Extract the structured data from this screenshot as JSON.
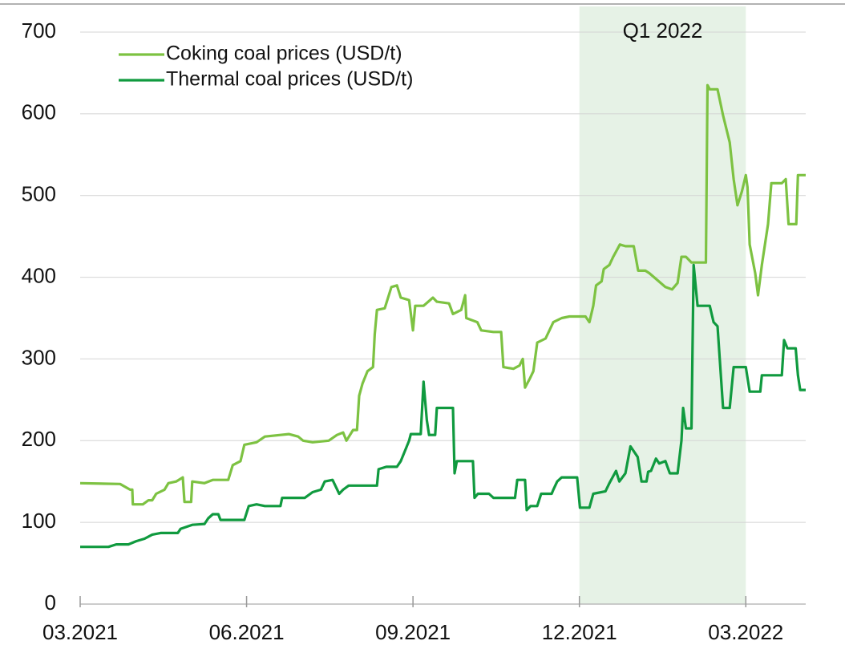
{
  "chart_data": {
    "type": "line",
    "highlight": {
      "label": "Q1 2022",
      "x": [
        9,
        12
      ],
      "color": "#e6f2e6"
    },
    "xlim": [
      0,
      13.08
    ],
    "xticks": [
      {
        "value": 0,
        "label": "03.2021"
      },
      {
        "value": 3,
        "label": "06.2021"
      },
      {
        "value": 6,
        "label": "09.2021"
      },
      {
        "value": 9,
        "label": "12.2021"
      },
      {
        "value": 12,
        "label": "03.2022"
      }
    ],
    "ylim": [
      0,
      700
    ],
    "yticks": [
      0,
      100,
      200,
      300,
      400,
      500,
      600,
      700
    ],
    "grid": true,
    "legend": "top-left",
    "series": [
      {
        "name": "Coking coal prices (USD/t)",
        "color": "#7dc242",
        "x": [
          0,
          0.72,
          0.9,
          0.94,
          0.95,
          1.13,
          1.23,
          1.3,
          1.37,
          1.52,
          1.59,
          1.73,
          1.85,
          1.88,
          2.0,
          2.02,
          2.24,
          2.39,
          2.67,
          2.75,
          2.89,
          2.96,
          3.18,
          3.33,
          3.61,
          3.76,
          3.93,
          4.02,
          4.19,
          4.48,
          4.63,
          4.74,
          4.8,
          4.92,
          4.99,
          5.03,
          5.09,
          5.18,
          5.28,
          5.31,
          5.35,
          5.49,
          5.61,
          5.71,
          5.78,
          5.93,
          6.0,
          6.04,
          6.19,
          6.36,
          6.43,
          6.65,
          6.72,
          6.87,
          6.94,
          6.96,
          7.16,
          7.23,
          7.45,
          7.59,
          7.63,
          7.81,
          7.92,
          7.98,
          8.02,
          8.1,
          8.17,
          8.24,
          8.39,
          8.53,
          8.68,
          8.82,
          9.11,
          9.18,
          9.25,
          9.3,
          9.4,
          9.44,
          9.54,
          9.61,
          9.73,
          9.83,
          9.98,
          10.06,
          10.19,
          10.26,
          10.38,
          10.55,
          10.67,
          10.77,
          10.84,
          10.92,
          11.02,
          11.28,
          11.31,
          11.35,
          11.49,
          11.59,
          11.71,
          11.78,
          11.85,
          11.93,
          12.0,
          12.03,
          12.07,
          12.17,
          12.22,
          12.29,
          12.4,
          12.46,
          12.65,
          12.72,
          12.77,
          12.91,
          12.94,
          13.08
        ],
        "values": [
          148,
          147,
          140,
          140,
          122,
          122,
          127,
          127,
          135,
          140,
          148,
          150,
          155,
          125,
          125,
          150,
          148,
          152,
          152,
          170,
          175,
          195,
          198,
          205,
          207,
          208,
          205,
          200,
          198,
          200,
          207,
          210,
          200,
          213,
          213,
          255,
          270,
          285,
          290,
          330,
          360,
          362,
          388,
          390,
          375,
          372,
          335,
          365,
          365,
          375,
          370,
          368,
          355,
          360,
          378,
          350,
          345,
          335,
          333,
          333,
          290,
          288,
          292,
          300,
          265,
          275,
          285,
          320,
          325,
          345,
          350,
          352,
          352,
          345,
          365,
          390,
          395,
          410,
          415,
          425,
          440,
          438,
          438,
          408,
          408,
          405,
          398,
          388,
          385,
          393,
          425,
          425,
          418,
          418,
          635,
          630,
          630,
          598,
          565,
          520,
          488,
          505,
          525,
          510,
          440,
          405,
          378,
          415,
          465,
          515,
          515,
          520,
          465,
          465,
          525,
          525
        ]
      },
      {
        "name": "Thermal coal prices (USD/t)",
        "color": "#109a3f",
        "x": [
          0,
          0.51,
          0.65,
          0.87,
          1.01,
          1.16,
          1.3,
          1.45,
          1.76,
          1.81,
          2.02,
          2.24,
          2.31,
          2.39,
          2.49,
          2.53,
          2.96,
          3.04,
          3.18,
          3.33,
          3.61,
          3.64,
          4.05,
          4.19,
          4.34,
          4.41,
          4.55,
          4.67,
          4.74,
          4.84,
          5.35,
          5.38,
          5.52,
          5.71,
          5.78,
          5.93,
          5.96,
          6.14,
          6.19,
          6.25,
          6.29,
          6.4,
          6.43,
          6.72,
          6.75,
          6.79,
          7.08,
          7.11,
          7.17,
          7.37,
          7.45,
          7.84,
          7.88,
          8.02,
          8.05,
          8.12,
          8.24,
          8.31,
          8.5,
          8.53,
          8.6,
          8.68,
          8.96,
          9.01,
          9.18,
          9.25,
          9.47,
          9.54,
          9.66,
          9.72,
          9.83,
          9.92,
          10.05,
          10.12,
          10.21,
          10.24,
          10.29,
          10.38,
          10.44,
          10.55,
          10.63,
          10.77,
          10.84,
          10.87,
          10.92,
          11.02,
          11.06,
          11.13,
          11.35,
          11.42,
          11.49,
          11.59,
          11.71,
          11.78,
          12.0,
          12.07,
          12.26,
          12.29,
          12.65,
          12.69,
          12.75,
          12.9,
          12.94,
          12.98,
          13.08
        ],
        "values": [
          70,
          70,
          73,
          73,
          77,
          80,
          85,
          87,
          87,
          92,
          97,
          98,
          105,
          110,
          110,
          103,
          103,
          120,
          122,
          120,
          120,
          130,
          130,
          137,
          140,
          150,
          152,
          135,
          140,
          145,
          145,
          165,
          168,
          168,
          175,
          200,
          208,
          208,
          272,
          225,
          207,
          207,
          240,
          240,
          160,
          175,
          175,
          130,
          135,
          135,
          130,
          130,
          152,
          152,
          115,
          120,
          120,
          135,
          135,
          140,
          150,
          155,
          155,
          118,
          118,
          135,
          138,
          148,
          163,
          150,
          160,
          193,
          180,
          150,
          150,
          162,
          163,
          178,
          172,
          175,
          160,
          160,
          200,
          240,
          215,
          215,
          415,
          365,
          365,
          345,
          340,
          240,
          240,
          290,
          290,
          260,
          260,
          280,
          280,
          323,
          313,
          313,
          280,
          262,
          262
        ]
      }
    ]
  }
}
